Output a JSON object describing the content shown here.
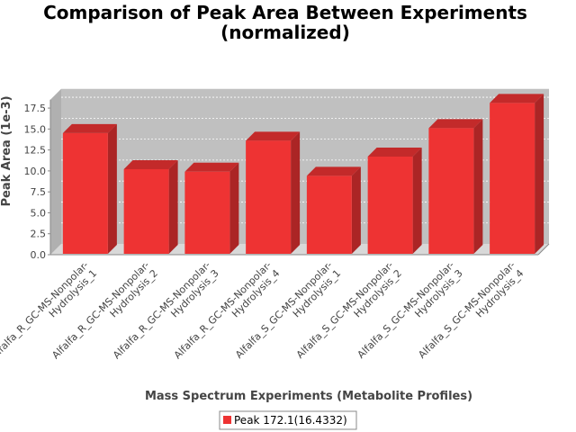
{
  "chart_data": {
    "type": "bar",
    "title_lines": [
      "Comparison of Peak Area Between Experiments",
      "(normalized)"
    ],
    "xlabel": "Mass Spectrum Experiments (Metabolite Profiles)",
    "ylabel": "Peak Area (1e-3)",
    "ylim": [
      0,
      18.5
    ],
    "yticks": [
      "0.0",
      "2.5",
      "5.0",
      "7.5",
      "10.0",
      "12.5",
      "15.0",
      "17.5"
    ],
    "grid": true,
    "legend_placement": "bottom-center",
    "categories": [
      [
        "Alfalfa_R_GC-MS-Nonpolar-",
        "Hydrolysis_1"
      ],
      [
        "Alfalfa_R_GC-MS-Nonpolar-",
        "Hydrolysis_2"
      ],
      [
        "Alfalfa_R_GC-MS-Nonpolar-",
        "Hydrolysis_3"
      ],
      [
        "Alfalfa_R_GC-MS-Nonpolar-",
        "Hydrolysis_4"
      ],
      [
        "Alfalfa_S_GC-MS-Nonpolar-",
        "Hydrolysis_1"
      ],
      [
        "Alfalfa_S_GC-MS-Nonpolar-",
        "Hydrolysis_2"
      ],
      [
        "Alfalfa_S_GC-MS-Nonpolar-",
        "Hydrolysis_3"
      ],
      [
        "Alfalfa_S_GC-MS-Nonpolar-",
        "Hydrolysis_4"
      ]
    ],
    "series": [
      {
        "name": "Peak 172.1(16.4332)",
        "color": "#ee3333",
        "values": [
          14.4,
          10.1,
          9.8,
          13.5,
          9.3,
          11.6,
          15.0,
          18.0
        ]
      }
    ]
  }
}
